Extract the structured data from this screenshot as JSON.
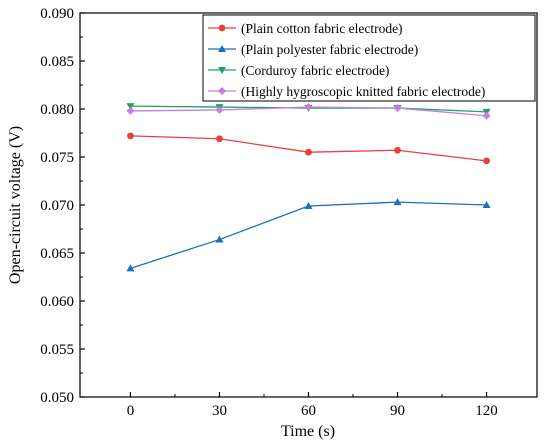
{
  "chart_data": {
    "type": "line",
    "title": "",
    "xlabel": "Time (s)",
    "ylabel": "Open-circuit voltage (V)",
    "x": [
      0,
      30,
      60,
      90,
      120
    ],
    "xlim": [
      -17,
      137
    ],
    "ylim": [
      0.05,
      0.09
    ],
    "x_ticks": [
      "0",
      "30",
      "60",
      "90",
      "120"
    ],
    "y_ticks": [
      "0.050",
      "0.055",
      "0.060",
      "0.065",
      "0.070",
      "0.075",
      "0.080",
      "0.085",
      "0.090"
    ],
    "grid": false,
    "legend_position": "top-right",
    "series": [
      {
        "name": "(Plain cotton fabric electrode)",
        "color": "#e8413c",
        "marker": "circle",
        "values": [
          0.0772,
          0.0769,
          0.0755,
          0.0757,
          0.0746
        ]
      },
      {
        "name": "(Plain polyester fabric electrode)",
        "color": "#1e6fbf",
        "marker": "triangle-up",
        "values": [
          0.0634,
          0.0664,
          0.0699,
          0.0703,
          0.07
        ]
      },
      {
        "name": "(Corduroy fabric electrode)",
        "color": "#22a262",
        "marker": "triangle-down",
        "values": [
          0.0803,
          0.0802,
          0.0801,
          0.0801,
          0.0797
        ]
      },
      {
        "name": "(Highly hygroscopic knitted fabric electrode)",
        "color": "#c47fe0",
        "marker": "diamond",
        "values": [
          0.0798,
          0.0799,
          0.0802,
          0.0801,
          0.0793
        ]
      }
    ]
  }
}
